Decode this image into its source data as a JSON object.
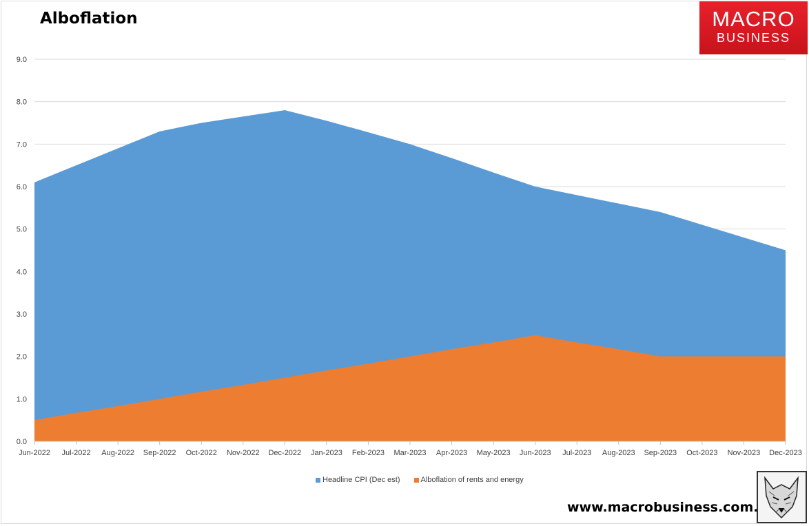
{
  "title": "Alboflation",
  "logo": {
    "line1": "MACRO",
    "line2": "BUSINESS",
    "bg_color": "#d7161e"
  },
  "website": "www.macrobusiness.com.au",
  "wolf_logo_icon": "wolf-head-icon",
  "chart_data": {
    "type": "area",
    "stacking": "overlapping",
    "categories": [
      "Jun-2022",
      "Jul-2022",
      "Aug-2022",
      "Sep-2022",
      "Oct-2022",
      "Nov-2022",
      "Dec-2022",
      "Jan-2023",
      "Feb-2023",
      "Mar-2023",
      "Apr-2023",
      "May-2023",
      "Jun-2023",
      "Jul-2023",
      "Aug-2023",
      "Sep-2023",
      "Oct-2023",
      "Nov-2023",
      "Dec-2023"
    ],
    "y_ticks": [
      "0.0",
      "1.0",
      "2.0",
      "3.0",
      "4.0",
      "5.0",
      "6.0",
      "7.0",
      "8.0",
      "9.0"
    ],
    "ylim": [
      0,
      9
    ],
    "grid": true,
    "legend_position": "bottom",
    "series": [
      {
        "name": "Headline CPI (Dec est)",
        "color": "#5b9bd5",
        "values": [
          6.1,
          6.5,
          6.9,
          7.3,
          7.5,
          7.65,
          7.8,
          7.55,
          7.28,
          7.0,
          6.67,
          6.33,
          6.0,
          5.8,
          5.6,
          5.4,
          5.1,
          4.8,
          4.5
        ]
      },
      {
        "name": "Alboflation of rents and energy",
        "color": "#ed7d31",
        "values": [
          0.5,
          0.67,
          0.83,
          1.0,
          1.17,
          1.33,
          1.5,
          1.67,
          1.83,
          2.0,
          2.17,
          2.33,
          2.5,
          2.33,
          2.17,
          2.0,
          2.0,
          2.0,
          2.0
        ]
      }
    ]
  }
}
